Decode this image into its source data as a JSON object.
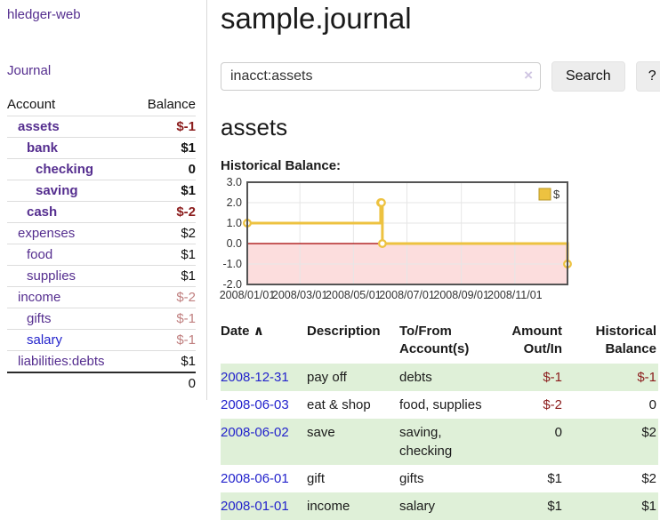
{
  "colors": {
    "link_purple": "#552e8f",
    "link_blue": "#2323cc",
    "negative_strong": "#8b1c1c",
    "negative_muted": "#c07f7f",
    "stripe_green": "#dff0d8",
    "chart_gold": "#edc240"
  },
  "sidebar": {
    "brand": "hledger-web",
    "journal_label": "Journal",
    "accounts_table": {
      "headers": {
        "account": "Account",
        "balance": "Balance"
      },
      "rows": [
        {
          "name": "assets",
          "level": 1,
          "bold": true,
          "link": "purple",
          "balance": "$-1",
          "balance_style": "negative-strong"
        },
        {
          "name": "bank",
          "level": 2,
          "bold": true,
          "link": "purple",
          "balance": "$1",
          "balance_style": "normal"
        },
        {
          "name": "checking",
          "level": 3,
          "bold": true,
          "link": "purple",
          "balance": "0",
          "balance_style": "normal"
        },
        {
          "name": "saving",
          "level": 3,
          "bold": true,
          "link": "purple",
          "balance": "$1",
          "balance_style": "normal"
        },
        {
          "name": "cash",
          "level": 2,
          "bold": true,
          "link": "purple",
          "balance": "$-2",
          "balance_style": "negative-strong"
        },
        {
          "name": "expenses",
          "level": 1,
          "bold": false,
          "link": "purple",
          "balance": "$2",
          "balance_style": "normal"
        },
        {
          "name": "food",
          "level": 2,
          "bold": false,
          "link": "purple",
          "balance": "$1",
          "balance_style": "normal"
        },
        {
          "name": "supplies",
          "level": 2,
          "bold": false,
          "link": "purple",
          "balance": "$1",
          "balance_style": "normal"
        },
        {
          "name": "income",
          "level": 1,
          "bold": false,
          "link": "purple",
          "balance": "$-2",
          "balance_style": "negative-muted"
        },
        {
          "name": "gifts",
          "level": 2,
          "bold": false,
          "link": "purple",
          "balance": "$-1",
          "balance_style": "negative-muted"
        },
        {
          "name": "salary",
          "level": 2,
          "bold": false,
          "link": "blue",
          "balance": "$-1",
          "balance_style": "negative-muted"
        },
        {
          "name": "liabilities:debts",
          "level": 1,
          "bold": false,
          "link": "purple",
          "balance": "$1",
          "balance_style": "normal"
        }
      ],
      "total": "0"
    }
  },
  "header": {
    "title": "sample.journal"
  },
  "search": {
    "value": "inacct:assets",
    "clear_icon": "×",
    "button_label": "Search",
    "help_label": "?"
  },
  "account_page": {
    "heading": "assets",
    "chart_title": "Historical Balance:"
  },
  "chart_data": {
    "type": "line",
    "step": true,
    "series": [
      {
        "name": "$",
        "color": "#edc240",
        "points": [
          {
            "date": "2008-01-01",
            "value": 1
          },
          {
            "date": "2008-06-01",
            "value": 2
          },
          {
            "date": "2008-06-02",
            "value": 2
          },
          {
            "date": "2008-06-03",
            "value": 0
          },
          {
            "date": "2008-12-31",
            "value": -1
          }
        ]
      }
    ],
    "xlim": [
      "2008-01-01",
      "2008-12-31"
    ],
    "ylim": [
      -2,
      3
    ],
    "y_ticks": [
      3,
      2,
      1,
      0,
      -1,
      -2
    ],
    "y_tick_labels": [
      "3.0",
      "2.0",
      "1.0",
      "0.0",
      "-1.0",
      "-2.0"
    ],
    "x_ticks": [
      "2008-01-01",
      "2008-03-01",
      "2008-05-01",
      "2008-07-01",
      "2008-09-01",
      "2008-11-01"
    ],
    "x_tick_labels": [
      "2008/01/01",
      "2008/03/01",
      "2008/05/01",
      "2008/07/01",
      "2008/09/01",
      "2008/11/01"
    ],
    "legend": {
      "label": "$",
      "position": "top-right"
    },
    "negative_region_color": "#fcdddd",
    "zero_line_color": "#a40000",
    "grid_color": "#e6e6e6",
    "border_color": "#545454"
  },
  "register_table": {
    "headers": {
      "date": "Date",
      "sort_icon": "∧",
      "description": "Description",
      "accounts": "To/From Account(s)",
      "amount": "Amount Out/In",
      "balance": "Historical Balance"
    },
    "rows": [
      {
        "date": "2008-12-31",
        "description": "pay off",
        "accounts": "debts",
        "amount": "$-1",
        "amount_negative": true,
        "balance": "$-1",
        "balance_negative": true,
        "stripe": true
      },
      {
        "date": "2008-06-03",
        "description": "eat & shop",
        "accounts": "food, supplies",
        "amount": "$-2",
        "amount_negative": true,
        "balance": "0",
        "balance_negative": false,
        "stripe": false
      },
      {
        "date": "2008-06-02",
        "description": "save",
        "accounts": "saving, checking",
        "amount": "0",
        "amount_negative": false,
        "balance": "$2",
        "balance_negative": false,
        "stripe": true
      },
      {
        "date": "2008-06-01",
        "description": "gift",
        "accounts": "gifts",
        "amount": "$1",
        "amount_negative": false,
        "balance": "$2",
        "balance_negative": false,
        "stripe": false
      },
      {
        "date": "2008-01-01",
        "description": "income",
        "accounts": "salary",
        "amount": "$1",
        "amount_negative": false,
        "balance": "$1",
        "balance_negative": false,
        "stripe": true
      }
    ]
  }
}
